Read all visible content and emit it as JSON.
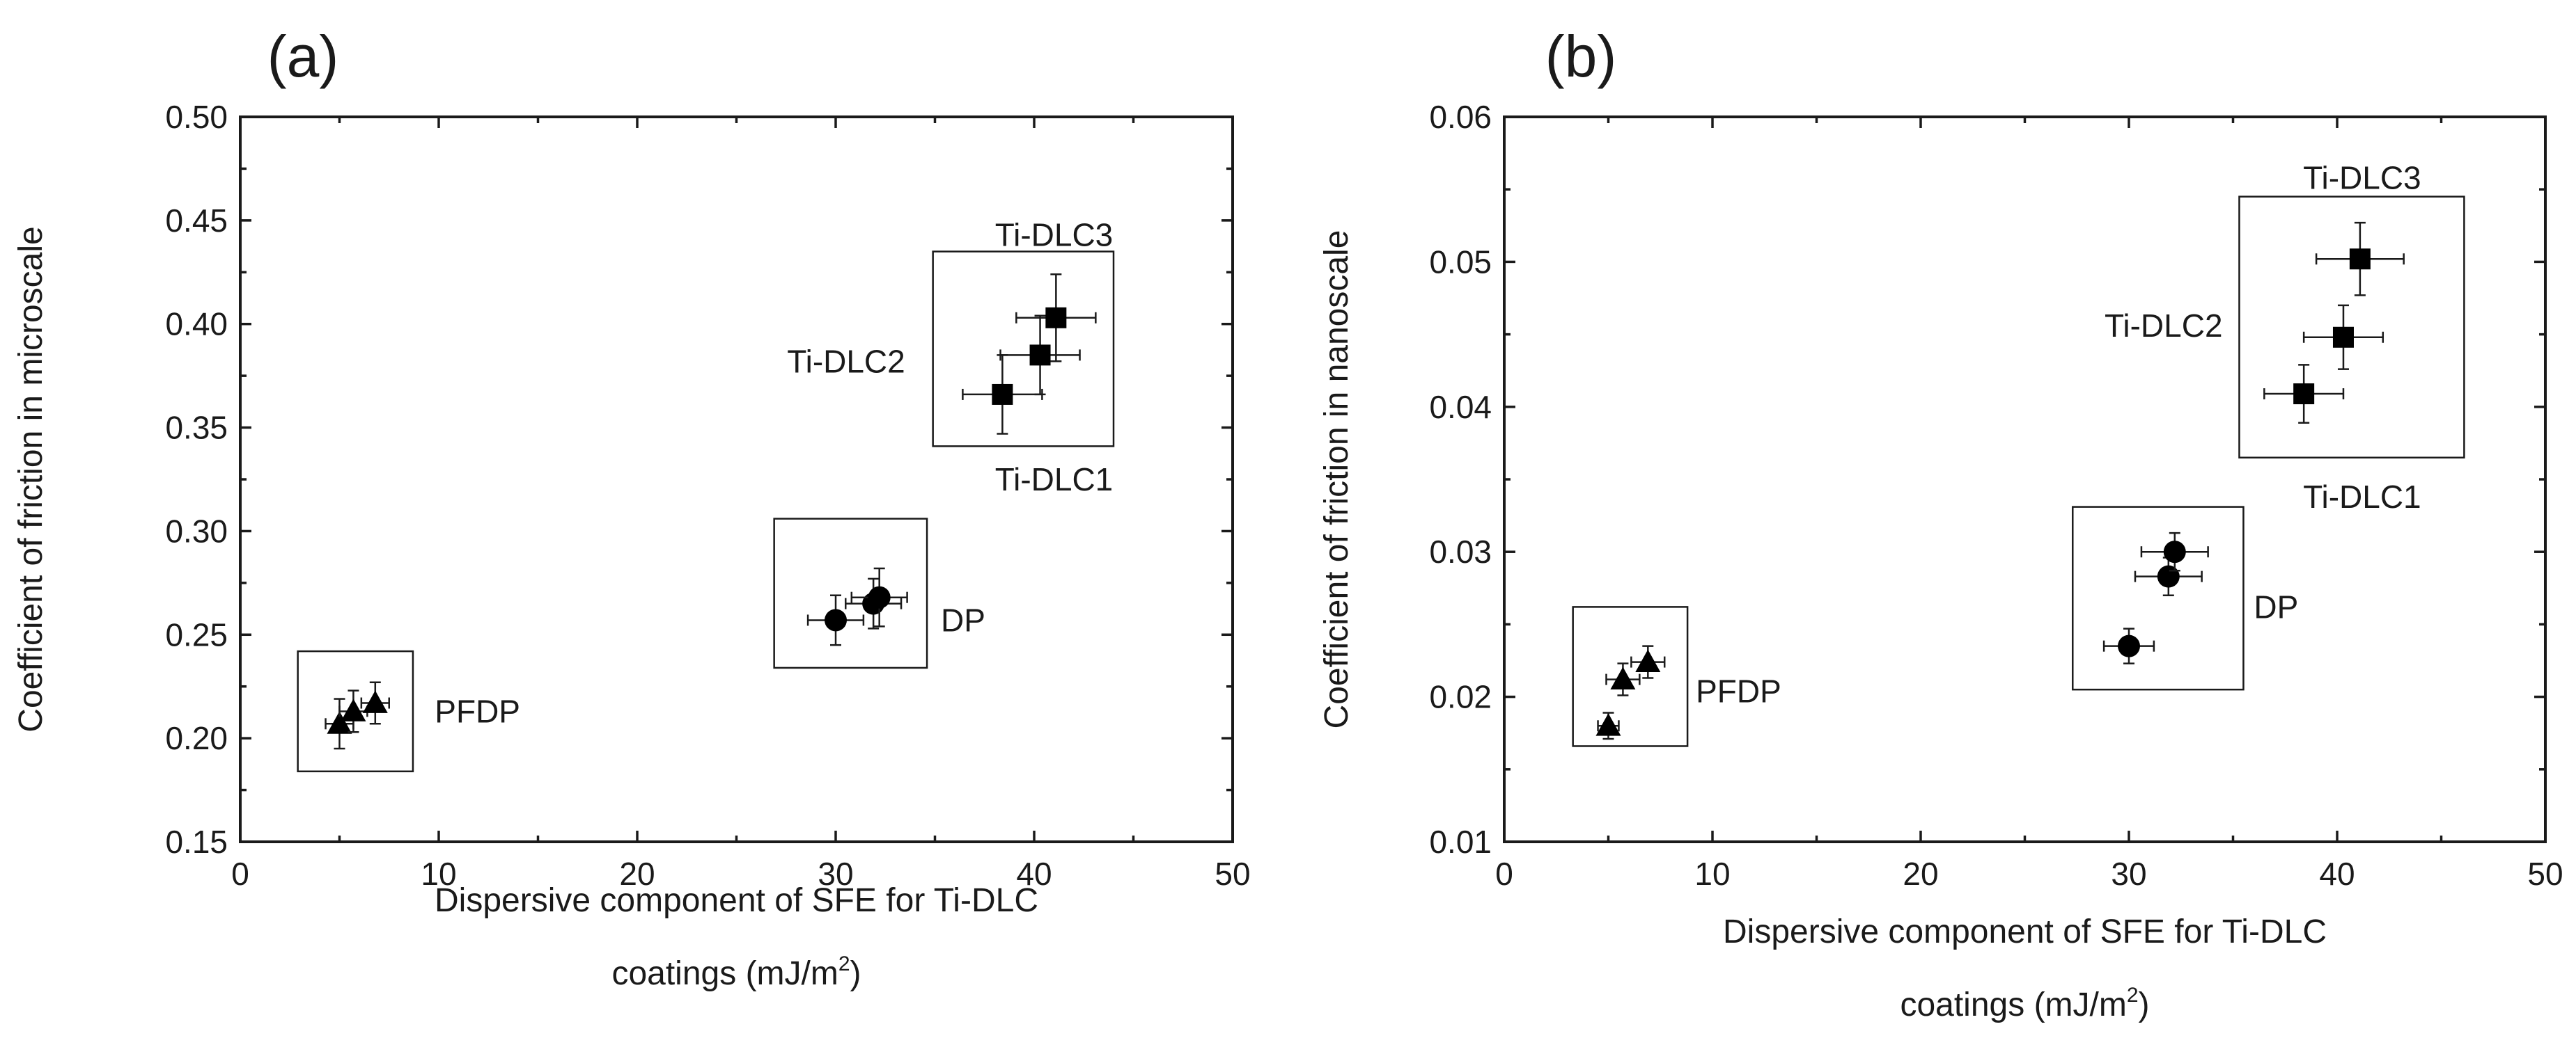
{
  "chart_data": [
    {
      "panel": "(a)",
      "type": "scatter",
      "xlabel": "Dispersive component of SFE for Ti-DLC",
      "xlabel_line2": "coatings (mJ/m",
      "xlabel_sup": "2",
      "xlabel_end": ")",
      "ylabel": "Coefficient of friction in microscale",
      "xlim": [
        0,
        50
      ],
      "ylim": [
        0.15,
        0.5
      ],
      "xticks": [
        0,
        10,
        20,
        30,
        40,
        50
      ],
      "yticks": [
        "0.15",
        "0.20",
        "0.25",
        "0.30",
        "0.35",
        "0.40",
        "0.45",
        "0.50"
      ],
      "groups": [
        {
          "name": "Ti-DLC",
          "marker": "square",
          "box": {
            "x": [
              34.9,
              44.0
            ],
            "y": [
              0.341,
              0.435
            ]
          },
          "labels": [
            {
              "text": "Ti-DLC3",
              "x": 41.0,
              "y": 0.443
            },
            {
              "text": "Ti-DLC2",
              "x": 33.5,
              "y": 0.382
            },
            {
              "text": "Ti-DLC1",
              "x": 41.0,
              "y": 0.325
            }
          ],
          "points": [
            {
              "name": "Ti-DLC1",
              "x": 38.4,
              "y": 0.366,
              "xerr": 2.0,
              "yerr": 0.019
            },
            {
              "name": "Ti-DLC2",
              "x": 40.3,
              "y": 0.385,
              "xerr": 2.0,
              "yerr": 0.019
            },
            {
              "name": "Ti-DLC3",
              "x": 41.1,
              "y": 0.403,
              "xerr": 2.0,
              "yerr": 0.021
            }
          ]
        },
        {
          "name": "DP",
          "marker": "circle",
          "box": {
            "x": [
              26.9,
              34.6
            ],
            "y": [
              0.234,
              0.306
            ]
          },
          "labels": [
            {
              "text": "DP",
              "x": 35.3,
              "y": 0.257
            }
          ],
          "points": [
            {
              "name": "DP1",
              "x": 30.0,
              "y": 0.257,
              "xerr": 1.4,
              "yerr": 0.012
            },
            {
              "name": "DP2",
              "x": 31.9,
              "y": 0.265,
              "xerr": 1.4,
              "yerr": 0.012
            },
            {
              "name": "DP3",
              "x": 32.2,
              "y": 0.268,
              "xerr": 1.4,
              "yerr": 0.014
            }
          ]
        },
        {
          "name": "PFDP",
          "marker": "triangle",
          "box": {
            "x": [
              2.9,
              8.7
            ],
            "y": [
              0.184,
              0.242
            ]
          },
          "labels": [
            {
              "text": "PFDP",
              "x": 9.8,
              "y": 0.213
            }
          ],
          "points": [
            {
              "name": "PFDP1",
              "x": 5.0,
              "y": 0.207,
              "xerr": 0.7,
              "yerr": 0.012
            },
            {
              "name": "PFDP2",
              "x": 5.7,
              "y": 0.213,
              "xerr": 0.7,
              "yerr": 0.01
            },
            {
              "name": "PFDP3",
              "x": 6.8,
              "y": 0.217,
              "xerr": 0.7,
              "yerr": 0.01
            }
          ]
        }
      ]
    },
    {
      "panel": "(b)",
      "type": "scatter",
      "xlabel": "Dispersive component of SFE for Ti-DLC",
      "xlabel_line2": "coatings (mJ/m",
      "xlabel_sup": "2",
      "xlabel_end": ")",
      "ylabel": "Coefficient of friction in nanoscale",
      "xlim": [
        0,
        50
      ],
      "ylim": [
        0.01,
        0.06
      ],
      "xticks": [
        0,
        10,
        20,
        30,
        40,
        50
      ],
      "yticks": [
        "0.01",
        "0.02",
        "0.03",
        "0.04",
        "0.05",
        "0.06"
      ],
      "groups": [
        {
          "name": "Ti-DLC",
          "marker": "square",
          "box": {
            "x": [
              35.3,
              46.1
            ],
            "y": [
              0.0365,
              0.0545
            ]
          },
          "labels": [
            {
              "text": "Ti-DLC3",
              "x": 41.2,
              "y": 0.0558
            },
            {
              "text": "Ti-DLC2",
              "x": 34.5,
              "y": 0.0456
            },
            {
              "text": "Ti-DLC1",
              "x": 41.2,
              "y": 0.0338
            }
          ],
          "points": [
            {
              "name": "Ti-DLC1",
              "x": 38.4,
              "y": 0.0409,
              "xerr": 1.9,
              "yerr": 0.002
            },
            {
              "name": "Ti-DLC2",
              "x": 40.3,
              "y": 0.0448,
              "xerr": 1.9,
              "yerr": 0.0022
            },
            {
              "name": "Ti-DLC3",
              "x": 41.1,
              "y": 0.0502,
              "xerr": 2.1,
              "yerr": 0.0025
            }
          ]
        },
        {
          "name": "DP",
          "marker": "circle",
          "box": {
            "x": [
              27.3,
              35.5
            ],
            "y": [
              0.0205,
              0.0331
            ]
          },
          "labels": [
            {
              "text": "DP",
              "x": 36.0,
              "y": 0.0262
            }
          ],
          "points": [
            {
              "name": "DP1",
              "x": 30.0,
              "y": 0.0235,
              "xerr": 1.2,
              "yerr": 0.0012
            },
            {
              "name": "DP2",
              "x": 31.9,
              "y": 0.0283,
              "xerr": 1.6,
              "yerr": 0.0013
            },
            {
              "name": "DP3",
              "x": 32.2,
              "y": 0.03,
              "xerr": 1.6,
              "yerr": 0.0013
            }
          ]
        },
        {
          "name": "PFDP",
          "marker": "triangle",
          "box": {
            "x": [
              3.3,
              8.8
            ],
            "y": [
              0.0166,
              0.0262
            ]
          },
          "labels": [
            {
              "text": "PFDP",
              "x": 9.2,
              "y": 0.0204
            }
          ],
          "points": [
            {
              "name": "PFDP1",
              "x": 5.0,
              "y": 0.018,
              "xerr": 0.5,
              "yerr": 0.0009
            },
            {
              "name": "PFDP2",
              "x": 5.7,
              "y": 0.0212,
              "xerr": 0.8,
              "yerr": 0.0011
            },
            {
              "name": "PFDP3",
              "x": 6.9,
              "y": 0.0224,
              "xerr": 0.8,
              "yerr": 0.0011
            }
          ]
        }
      ]
    }
  ]
}
